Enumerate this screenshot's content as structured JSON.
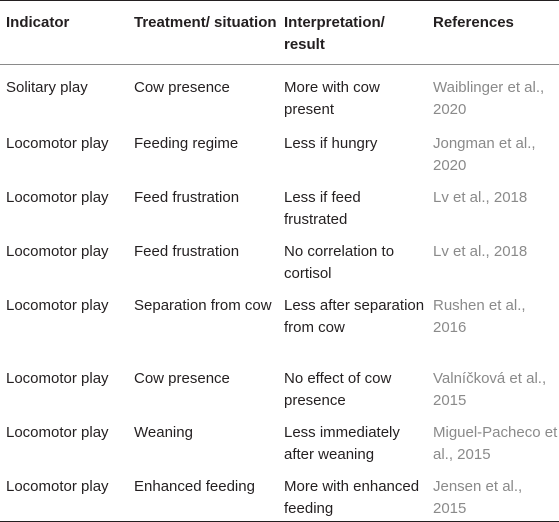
{
  "table": {
    "headers": [
      "Indicator",
      "Treatment/ situation",
      "Interpretation/ result",
      "References"
    ],
    "rows": [
      [
        "Solitary play",
        "Cow presence",
        "More with cow present",
        "Waiblinger et al., 2020"
      ],
      [
        "Locomotor play",
        "Feeding regime",
        "Less if hungry",
        "Jongman et al., 2020"
      ],
      [
        "Locomotor play",
        "Feed frustration",
        "Less if feed frustrated",
        "Lv et al., 2018"
      ],
      [
        "Locomotor play",
        "Feed frustration",
        "No correlation to cortisol",
        "Lv et al., 2018"
      ],
      [
        "Locomotor play",
        "Separation from cow",
        "Less after separation from cow",
        "Rushen et al., 2016"
      ],
      [
        "Locomotor play",
        "Cow presence",
        "No effect of cow presence",
        "Valníčková et al., 2015"
      ],
      [
        "Locomotor play",
        "Weaning",
        "Less immediately after weaning",
        "Miguel-Pacheco et al., 2015"
      ],
      [
        "Locomotor play",
        "Enhanced feeding",
        "More with enhanced feeding",
        "Jensen et al., 2015"
      ]
    ]
  }
}
